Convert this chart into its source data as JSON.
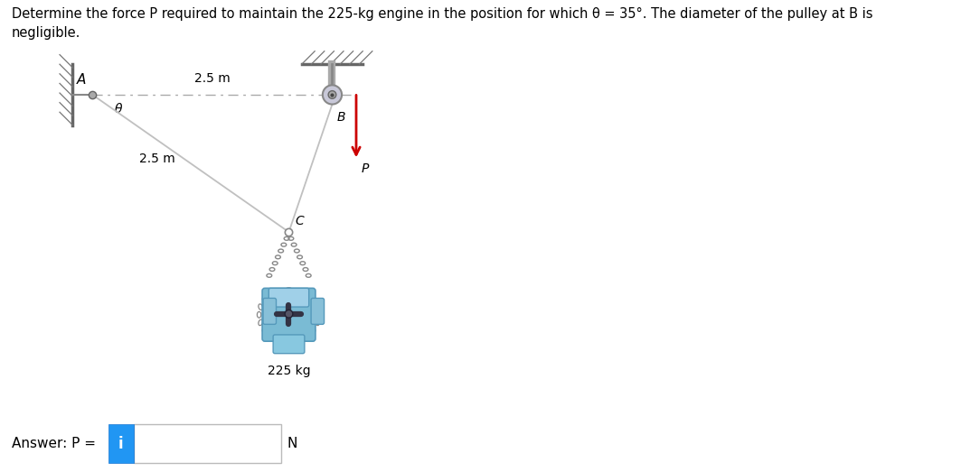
{
  "title_line1": "Determine the force P required to maintain the 225-kg engine in the position for which θ = 35°. The diameter of the pulley at B is",
  "title_line2": "negligible.",
  "title_fontsize": 10.5,
  "fig_width": 10.84,
  "fig_height": 5.23,
  "bg_color": "#ffffff",
  "label_25m_top": "2.5 m",
  "label_25m_diag": "2.5 m",
  "label_225kg": "225 kg",
  "label_A": "A",
  "label_theta": "θ",
  "label_B": "B",
  "label_C": "C",
  "label_P": "P",
  "label_N": "N",
  "answer_text": "Answer: P = ",
  "arrow_color": "#cc0000",
  "answer_box_color": "#2196F3"
}
